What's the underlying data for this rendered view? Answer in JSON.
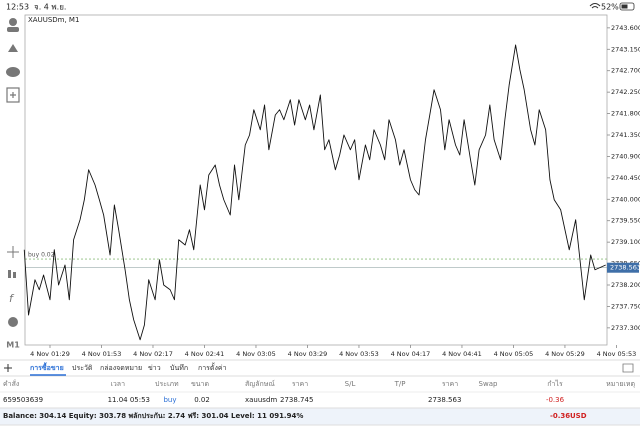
{
  "status_bar": {
    "time": "12:53",
    "date": "จ. 4 พ.ย.",
    "battery": "52%"
  },
  "toolbar": {
    "timeframe": "M1"
  },
  "chart_data": {
    "type": "line",
    "title": "XAUUSDm, M1",
    "color": "#111111",
    "x": [
      77,
      79,
      82,
      84,
      86,
      89,
      91,
      93,
      96,
      98,
      100,
      103,
      105,
      107,
      110,
      112,
      114,
      117,
      119,
      121,
      124,
      126,
      128,
      131,
      133,
      135,
      138,
      140,
      142,
      145,
      147,
      149,
      152,
      154,
      156,
      159,
      161,
      163,
      166,
      168,
      170,
      173,
      175,
      177,
      180,
      182,
      184,
      187,
      189,
      191,
      194,
      196,
      198,
      201,
      203,
      205,
      208,
      210,
      212,
      215,
      217,
      219,
      222,
      224,
      226,
      229,
      231,
      233,
      236,
      238,
      240,
      243,
      245,
      247,
      250,
      252,
      254,
      257,
      259,
      261,
      264,
      266,
      268,
      271,
      273,
      275,
      278,
      280,
      282,
      285,
      287,
      289,
      292,
      294,
      296,
      299,
      301,
      303,
      306,
      308,
      310,
      313,
      315,
      317,
      320,
      322,
      324,
      327,
      329,
      331,
      334,
      336,
      338,
      341,
      343,
      345,
      348
    ],
    "values": [
      2738.94,
      2737.57,
      2738.31,
      2738.1,
      2738.41,
      2737.89,
      2738.94,
      2738.2,
      2738.62,
      2737.89,
      2739.15,
      2739.57,
      2739.99,
      2740.62,
      2740.3,
      2739.99,
      2739.67,
      2738.83,
      2739.88,
      2739.36,
      2738.52,
      2737.89,
      2737.47,
      2737.05,
      2737.36,
      2738.31,
      2737.89,
      2738.73,
      2738.2,
      2738.1,
      2737.89,
      2739.15,
      2739.04,
      2739.36,
      2738.94,
      2740.3,
      2739.78,
      2740.51,
      2740.72,
      2740.3,
      2739.99,
      2739.67,
      2740.72,
      2739.99,
      2741.14,
      2741.35,
      2741.88,
      2741.46,
      2741.98,
      2741.04,
      2741.77,
      2741.88,
      2741.67,
      2742.09,
      2741.56,
      2742.09,
      2741.67,
      2741.98,
      2741.46,
      2742.19,
      2741.04,
      2741.25,
      2740.62,
      2740.93,
      2741.35,
      2741.04,
      2741.25,
      2740.41,
      2741.14,
      2740.83,
      2741.46,
      2741.14,
      2740.83,
      2741.67,
      2741.25,
      2740.72,
      2741.04,
      2740.41,
      2740.2,
      2740.09,
      2741.25,
      2741.77,
      2742.3,
      2741.88,
      2741.04,
      2741.67,
      2741.14,
      2740.93,
      2741.67,
      2740.83,
      2740.3,
      2741.04,
      2741.35,
      2741.98,
      2741.25,
      2740.83,
      2741.67,
      2742.4,
      2743.24,
      2742.72,
      2742.3,
      2741.46,
      2741.14,
      2741.88,
      2741.46,
      2740.41,
      2739.99,
      2739.78,
      2739.36,
      2738.94,
      2739.57,
      2738.73,
      2737.89,
      2738.83,
      2738.52,
      2738.56,
      2738.62
    ],
    "xlim": [
      77.35,
      348.6
    ],
    "xticks": [
      {
        "value": 89,
        "label": "4 Nov 01:29"
      },
      {
        "value": 113,
        "label": "4 Nov 01:53"
      },
      {
        "value": 137,
        "label": "4 Nov 02:17"
      },
      {
        "value": 161,
        "label": "4 Nov 02:41"
      },
      {
        "value": 185,
        "label": "4 Nov 03:05"
      },
      {
        "value": 209,
        "label": "4 Nov 03:29"
      },
      {
        "value": 233,
        "label": "4 Nov 03:53"
      },
      {
        "value": 257,
        "label": "4 Nov 04:17"
      },
      {
        "value": 281,
        "label": "4 Nov 04:41"
      },
      {
        "value": 305,
        "label": "4 Nov 05:05"
      },
      {
        "value": 329,
        "label": "4 Nov 05:29"
      },
      {
        "value": 353,
        "label": "4 Nov 05:53"
      }
    ],
    "ylim": [
      2736.94,
      2743.87
    ],
    "yticks": [
      {
        "value": 2743.6,
        "label": "2743.600"
      },
      {
        "value": 2743.15,
        "label": "2743.150"
      },
      {
        "value": 2742.7,
        "label": "2742.700"
      },
      {
        "value": 2742.25,
        "label": "2742.250"
      },
      {
        "value": 2741.8,
        "label": "2741.800"
      },
      {
        "value": 2741.35,
        "label": "2741.350"
      },
      {
        "value": 2740.9,
        "label": "2740.900"
      },
      {
        "value": 2740.45,
        "label": "2740.450"
      },
      {
        "value": 2740.0,
        "label": "2740.000"
      },
      {
        "value": 2739.55,
        "label": "2739.550"
      },
      {
        "value": 2739.1,
        "label": "2739.100"
      },
      {
        "value": 2738.65,
        "label": "2738.650"
      },
      {
        "value": 2738.2,
        "label": "2738.200"
      },
      {
        "value": 2737.75,
        "label": "2737.750"
      },
      {
        "value": 2737.3,
        "label": "2737.300"
      }
    ],
    "order_line": {
      "label": "buy 0.02",
      "value": 2738.745,
      "color": "#8fbf7f"
    },
    "current_price": 2738.563,
    "current_price_color": "#3f6fa8"
  },
  "tabs": [
    "การซื้อขาย",
    "ประวัติ",
    "กล่องจดหมาย",
    "ข่าว",
    "บันทึก",
    "การตั้งค่า"
  ],
  "table": {
    "headers": [
      "คำสั่ง",
      "เวลา",
      "ประเภท",
      "ขนาด",
      "สัญลักษณ์",
      "ราคา",
      "S/L",
      "T/P",
      "ราคา",
      "Swap",
      "กำไร",
      "หมายเหตุ"
    ],
    "row": {
      "order": "659503639",
      "time": "11.04 05:53",
      "type": "buy",
      "volume": "0.02",
      "symbol": "xauusdm",
      "open_price": "2738.745",
      "price": "2738.563",
      "profit": "-0.36"
    }
  },
  "summary": {
    "text": "Balance: 304.14 Equity: 303.78 พลักประกัน: 2.74 ฟรี: 301.04 Level: 11 091.94%",
    "profit": "-0.36",
    "currency": "USD"
  }
}
